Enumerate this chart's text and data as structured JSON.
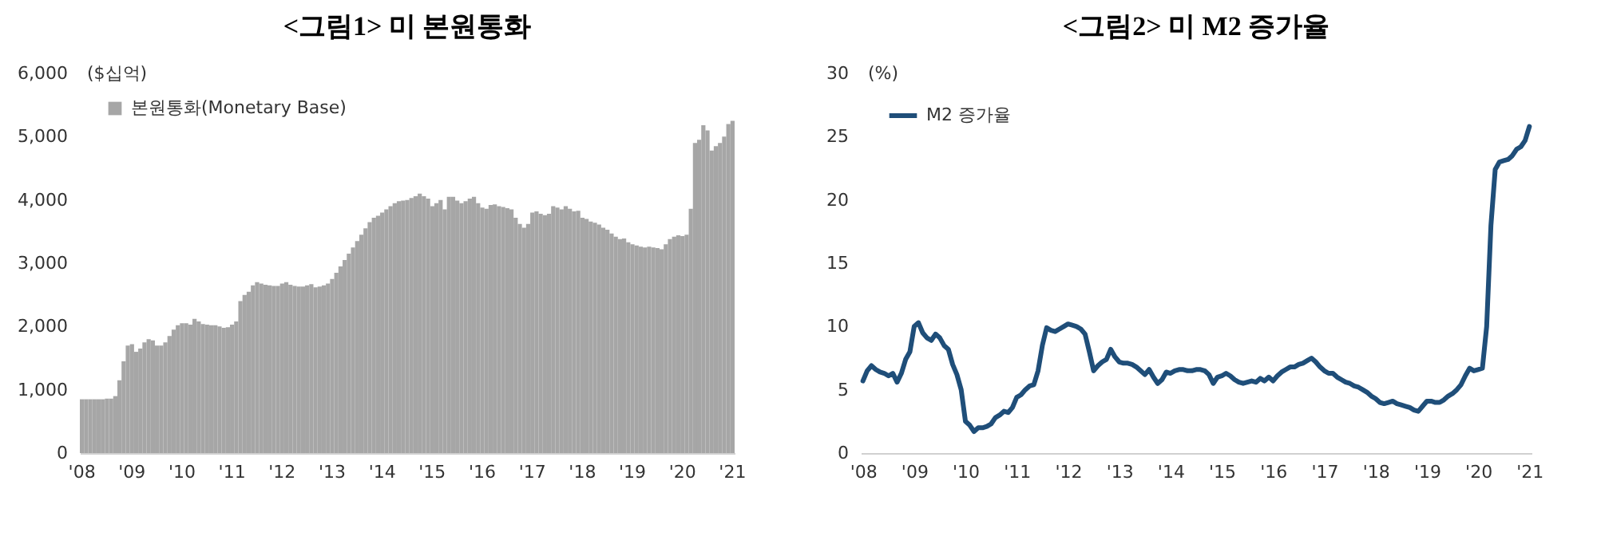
{
  "chart_data": [
    {
      "type": "bar",
      "title": "<그림1> 미 본원통화",
      "ylabel": "($십억)",
      "legend": "top left",
      "categories": [
        "'08",
        null,
        null,
        null,
        null,
        null,
        null,
        null,
        null,
        null,
        null,
        null,
        "'09",
        null,
        null,
        null,
        null,
        null,
        null,
        null,
        null,
        null,
        null,
        null,
        "'10",
        null,
        null,
        null,
        null,
        null,
        null,
        null,
        null,
        null,
        null,
        null,
        "'11",
        null,
        null,
        null,
        null,
        null,
        null,
        null,
        null,
        null,
        null,
        null,
        "'12",
        null,
        null,
        null,
        null,
        null,
        null,
        null,
        null,
        null,
        null,
        null,
        "'13",
        null,
        null,
        null,
        null,
        null,
        null,
        null,
        null,
        null,
        null,
        null,
        "'14",
        null,
        null,
        null,
        null,
        null,
        null,
        null,
        null,
        null,
        null,
        null,
        "'15",
        null,
        null,
        null,
        null,
        null,
        null,
        null,
        null,
        null,
        null,
        null,
        "'16",
        null,
        null,
        null,
        null,
        null,
        null,
        null,
        null,
        null,
        null,
        null,
        "'17",
        null,
        null,
        null,
        null,
        null,
        null,
        null,
        null,
        null,
        null,
        null,
        "'18",
        null,
        null,
        null,
        null,
        null,
        null,
        null,
        null,
        null,
        null,
        null,
        "'19",
        null,
        null,
        null,
        null,
        null,
        null,
        null,
        null,
        null,
        null,
        null,
        "'20",
        null,
        null,
        null,
        null,
        null,
        null,
        null,
        null,
        null,
        null,
        null,
        "'21"
      ],
      "ylim": [
        0,
        6000
      ],
      "yticks": [
        {
          "value": 0,
          "label": "0"
        },
        {
          "value": 1000,
          "label": "1,000"
        },
        {
          "value": 2000,
          "label": "2,000"
        },
        {
          "value": 3000,
          "label": "3,000"
        },
        {
          "value": 4000,
          "label": "4,000"
        },
        {
          "value": 5000,
          "label": "5,000"
        },
        {
          "value": 6000,
          "label": "6,000"
        }
      ],
      "series": [
        {
          "name": "본원통화(Monetary Base)",
          "color": "#a6a6a6",
          "values": [
            850,
            850,
            850,
            850,
            850,
            850,
            860,
            860,
            900,
            1150,
            1450,
            1700,
            1720,
            1600,
            1650,
            1750,
            1800,
            1780,
            1700,
            1700,
            1750,
            1850,
            1950,
            2020,
            2050,
            2050,
            2030,
            2120,
            2080,
            2040,
            2030,
            2020,
            2020,
            2000,
            1980,
            1990,
            2030,
            2080,
            2400,
            2500,
            2550,
            2650,
            2700,
            2680,
            2660,
            2650,
            2640,
            2640,
            2680,
            2700,
            2660,
            2640,
            2630,
            2630,
            2650,
            2670,
            2620,
            2630,
            2650,
            2680,
            2750,
            2850,
            2950,
            3050,
            3150,
            3250,
            3350,
            3450,
            3550,
            3650,
            3720,
            3750,
            3800,
            3850,
            3900,
            3950,
            3980,
            3990,
            4000,
            4030,
            4060,
            4100,
            4060,
            4020,
            3900,
            3950,
            4000,
            3850,
            4050,
            4050,
            3990,
            3950,
            3980,
            4020,
            4050,
            3950,
            3880,
            3860,
            3920,
            3930,
            3900,
            3890,
            3870,
            3850,
            3720,
            3620,
            3560,
            3620,
            3800,
            3820,
            3780,
            3760,
            3780,
            3900,
            3880,
            3850,
            3900,
            3860,
            3820,
            3830,
            3720,
            3700,
            3660,
            3640,
            3610,
            3560,
            3530,
            3470,
            3420,
            3380,
            3390,
            3330,
            3300,
            3280,
            3260,
            3250,
            3260,
            3250,
            3240,
            3220,
            3300,
            3380,
            3420,
            3440,
            3430,
            3450,
            3860,
            4900,
            4950,
            5180,
            5100,
            4780,
            4850,
            4900,
            5000,
            5200,
            5250
          ]
        }
      ]
    },
    {
      "type": "line",
      "title": "<그림2> 미 M2 증가율",
      "ylabel": "(%)",
      "legend": "top left",
      "categories": [
        "'08",
        null,
        null,
        null,
        null,
        null,
        null,
        null,
        null,
        null,
        null,
        null,
        "'09",
        null,
        null,
        null,
        null,
        null,
        null,
        null,
        null,
        null,
        null,
        null,
        "'10",
        null,
        null,
        null,
        null,
        null,
        null,
        null,
        null,
        null,
        null,
        null,
        "'11",
        null,
        null,
        null,
        null,
        null,
        null,
        null,
        null,
        null,
        null,
        null,
        "'12",
        null,
        null,
        null,
        null,
        null,
        null,
        null,
        null,
        null,
        null,
        null,
        "'13",
        null,
        null,
        null,
        null,
        null,
        null,
        null,
        null,
        null,
        null,
        null,
        "'14",
        null,
        null,
        null,
        null,
        null,
        null,
        null,
        null,
        null,
        null,
        null,
        "'15",
        null,
        null,
        null,
        null,
        null,
        null,
        null,
        null,
        null,
        null,
        null,
        "'16",
        null,
        null,
        null,
        null,
        null,
        null,
        null,
        null,
        null,
        null,
        null,
        "'17",
        null,
        null,
        null,
        null,
        null,
        null,
        null,
        null,
        null,
        null,
        null,
        "'18",
        null,
        null,
        null,
        null,
        null,
        null,
        null,
        null,
        null,
        null,
        null,
        "'19",
        null,
        null,
        null,
        null,
        null,
        null,
        null,
        null,
        null,
        null,
        null,
        "'20",
        null,
        null,
        null,
        null,
        null,
        null,
        null,
        null,
        null,
        null,
        null,
        "'21"
      ],
      "ylim": [
        0,
        30
      ],
      "yticks": [
        0,
        5,
        10,
        15,
        20,
        25,
        30
      ],
      "line_style": "solid",
      "series": [
        {
          "name": "M2 증가율",
          "color": "#1f4e79",
          "values": [
            5.7,
            6.5,
            6.9,
            6.6,
            6.4,
            6.3,
            6.1,
            6.3,
            5.6,
            6.3,
            7.4,
            8.0,
            10.0,
            10.3,
            9.5,
            9.1,
            8.9,
            9.4,
            9.1,
            8.5,
            8.2,
            7.0,
            6.2,
            5.0,
            2.5,
            2.2,
            1.7,
            2.0,
            2.0,
            2.1,
            2.3,
            2.8,
            3.0,
            3.3,
            3.2,
            3.6,
            4.4,
            4.6,
            5.0,
            5.3,
            5.4,
            6.5,
            8.5,
            9.9,
            9.7,
            9.6,
            9.8,
            10.0,
            10.2,
            10.1,
            10.0,
            9.8,
            9.4,
            8.0,
            6.5,
            6.9,
            7.2,
            7.4,
            8.2,
            7.6,
            7.2,
            7.1,
            7.1,
            7.0,
            6.8,
            6.5,
            6.2,
            6.6,
            6.0,
            5.5,
            5.8,
            6.4,
            6.3,
            6.5,
            6.6,
            6.6,
            6.5,
            6.5,
            6.6,
            6.6,
            6.5,
            6.2,
            5.5,
            6.0,
            6.1,
            6.3,
            6.1,
            5.8,
            5.6,
            5.5,
            5.6,
            5.7,
            5.6,
            5.9,
            5.7,
            6.0,
            5.7,
            6.1,
            6.4,
            6.6,
            6.8,
            6.8,
            7.0,
            7.1,
            7.3,
            7.5,
            7.2,
            6.8,
            6.5,
            6.3,
            6.3,
            6.0,
            5.8,
            5.6,
            5.5,
            5.3,
            5.2,
            5.0,
            4.8,
            4.5,
            4.3,
            4.0,
            3.9,
            4.0,
            4.1,
            3.9,
            3.8,
            3.7,
            3.6,
            3.4,
            3.3,
            3.7,
            4.1,
            4.1,
            4.0,
            4.0,
            4.2,
            4.5,
            4.7,
            5.0,
            5.4,
            6.1,
            6.7,
            6.5,
            6.6,
            6.7,
            10.0,
            18.0,
            22.4,
            23.0,
            23.1,
            23.2,
            23.5,
            24.0,
            24.2,
            24.7,
            25.8
          ]
        }
      ]
    }
  ]
}
